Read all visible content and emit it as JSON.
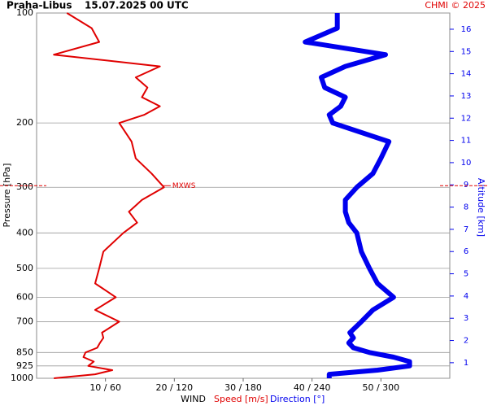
{
  "chart_data": {
    "type": "line",
    "title": "Praha-Libus",
    "subtitle": "15.07.2025 00 UTC",
    "credit": "CHMI © 2025",
    "y_label": "Pressure [hPa]",
    "y2_label": "Altitude [km]",
    "x_label": "WIND",
    "y_scale": "log",
    "grid": true,
    "xlim": [
      0,
      60
    ],
    "x2lim": [
      0,
      360
    ],
    "xticks": [
      {
        "value": 10,
        "label": "10 / 60"
      },
      {
        "value": 20,
        "label": "20 / 120"
      },
      {
        "value": 30,
        "label": "30 / 180"
      },
      {
        "value": 40,
        "label": "40 / 240"
      },
      {
        "value": 50,
        "label": "50 / 300"
      }
    ],
    "ylim": [
      1000,
      100
    ],
    "yticks": [
      100,
      200,
      300,
      400,
      500,
      600,
      700,
      850,
      925,
      1000
    ],
    "y2lim": [
      0.3,
      16.73
    ],
    "y2ticks": [
      1,
      2,
      3,
      4,
      5,
      6,
      7,
      8,
      9,
      10,
      11,
      12,
      13,
      14,
      15,
      16
    ],
    "y": [
      1000,
      975,
      950,
      925,
      900,
      875,
      850,
      825,
      800,
      775,
      750,
      700,
      650,
      600,
      550,
      500,
      450,
      400,
      375,
      350,
      325,
      300,
      275,
      250,
      225,
      200,
      190,
      180,
      170,
      160,
      150,
      140,
      130,
      120,
      110,
      100
    ],
    "series": [
      {
        "name": "Speed [m/s]",
        "color": "#e00000",
        "axis": "x",
        "width": 2,
        "values": [
          2.5,
          8.5,
          11,
          7.5,
          8.3,
          6.8,
          7.1,
          8.8,
          9.2,
          9.7,
          9.5,
          12,
          8.5,
          11.5,
          8.5,
          9.1,
          9.7,
          12.6,
          14.6,
          13.4,
          15.3,
          18.5,
          16.7,
          14.4,
          13.8,
          12,
          15.6,
          17.9,
          15.3,
          16.1,
          14.4,
          17.9,
          2.5,
          9.1,
          8,
          4.4
        ]
      },
      {
        "name": "Direction [°]",
        "color": "#0000ee",
        "axis": "x2",
        "width": 6,
        "values": [
          255,
          255,
          297,
          325,
          325,
          311,
          290,
          276,
          272,
          276,
          273,
          283,
          293,
          311,
          297,
          290,
          283,
          279,
          272,
          269,
          269,
          279,
          293,
          300,
          307,
          258,
          255,
          265,
          269,
          251,
          248,
          269,
          304,
          234,
          262,
          262
        ]
      }
    ],
    "annotations": [
      {
        "text": "MXWS",
        "x": 19,
        "y": 297,
        "color": "#e00000"
      }
    ]
  }
}
